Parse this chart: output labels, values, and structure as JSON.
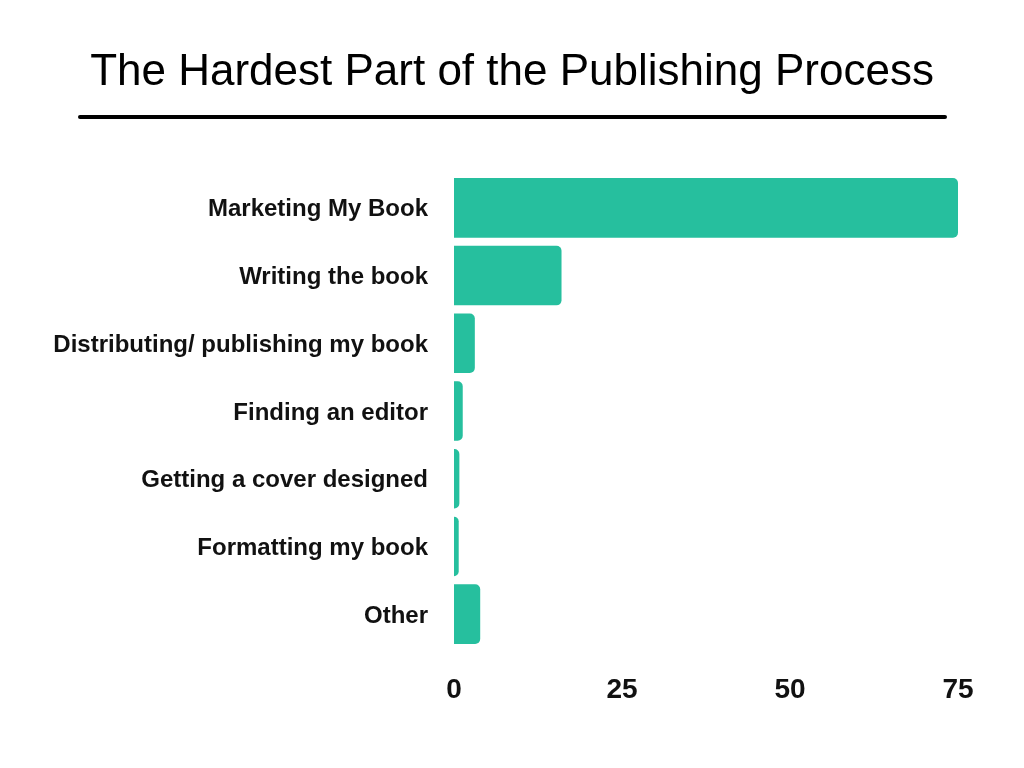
{
  "chart_data": {
    "type": "bar",
    "orientation": "horizontal",
    "title": "The Hardest Part of the Publishing Process",
    "categories": [
      "Marketing My Book",
      "Writing the book",
      "Distributing/ publishing my book",
      "Finding an editor",
      "Getting a cover designed",
      "Formatting my book",
      "Other"
    ],
    "values": [
      75,
      16,
      3.1,
      1.3,
      0.8,
      0.7,
      3.9
    ],
    "color": "#26bf9e",
    "xlim": [
      0,
      75
    ],
    "xticks": [
      0,
      25,
      50,
      75
    ]
  }
}
